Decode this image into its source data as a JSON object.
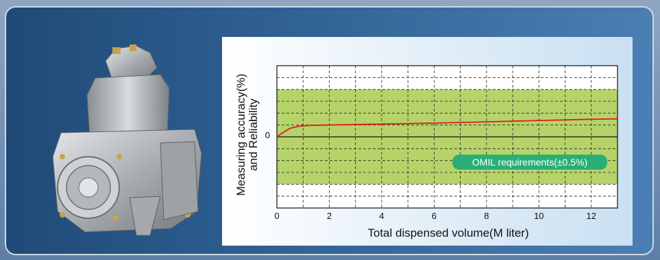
{
  "chart_data": {
    "type": "line",
    "xlabel": "Total dispensed volume(M liter)",
    "ylabel_line1": "Measuring accuracy(%)",
    "ylabel_line2": "and Reliability",
    "x_ticks": [
      0,
      2,
      4,
      6,
      8,
      10,
      12
    ],
    "y_tick_label": "0",
    "xlim": [
      0,
      13
    ],
    "ylim": [
      -0.75,
      0.75
    ],
    "grid": true,
    "band": {
      "low": -0.5,
      "high": 0.5,
      "color": "#b6d36a"
    },
    "annotation": "OMIL requirements(±0.5%)",
    "annotation_color": "#2aae78",
    "series": [
      {
        "color": "#e11b1b",
        "x": [
          0,
          0.2,
          0.5,
          0.8,
          1.2,
          2,
          4,
          6,
          8,
          10,
          12,
          13
        ],
        "y": [
          0,
          0.04,
          0.09,
          0.11,
          0.12,
          0.125,
          0.135,
          0.145,
          0.158,
          0.172,
          0.185,
          0.19
        ]
      }
    ]
  },
  "product": {
    "color": "#b9bcc0"
  }
}
